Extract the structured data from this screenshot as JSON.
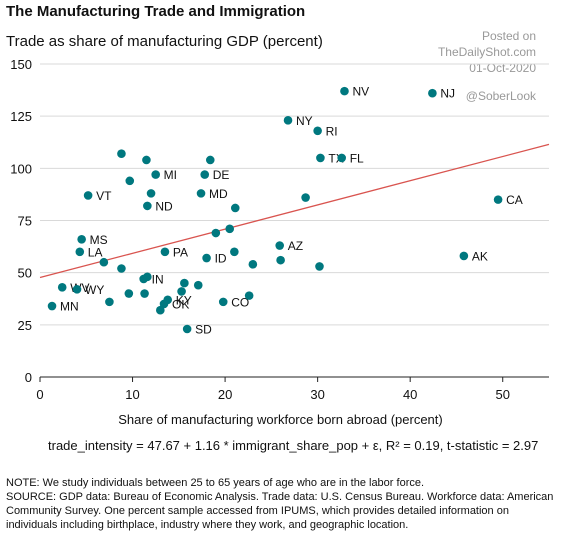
{
  "header": {
    "title": "The Manufacturing Trade and Immigration",
    "subtitle": "Trade as share of manufacturing GDP (percent)"
  },
  "watermark": {
    "posted_on": "Posted on",
    "site": "TheDailyShot.com",
    "date": "01-Oct-2020",
    "handle": "@SoberLook"
  },
  "equation": "trade_intensity = 47.67 + 1.16 * immigrant_share_pop + ε, R² = 0.19, t-statistic = 2.97",
  "notes": {
    "note": "NOTE: We study individuals between 25 to 65 years of age who are in the labor force.",
    "source": "SOURCE: GDP data: Bureau of Economic Analysis. Trade data: U.S. Census Bureau.  Workforce data: American Community Survey. One percent sample accessed from IPUMS, which provides detailed information on individuals including birthplace, industry where they work, and geographic location."
  },
  "colors": {
    "point": "#00787f",
    "trend": "#d9544f",
    "grid": "#d9d9d9"
  },
  "chart_data": {
    "type": "scatter",
    "xlabel": "Share of manufacturing workforce born abroad (percent)",
    "ylabel": "Trade as share of manufacturing GDP (percent)",
    "xlim": [
      0,
      55
    ],
    "ylim": [
      0,
      150
    ],
    "xticks": [
      0,
      10,
      20,
      30,
      40,
      50
    ],
    "yticks": [
      0,
      25,
      50,
      75,
      100,
      125,
      150
    ],
    "grid": "horizontal",
    "trendline": {
      "intercept": 47.67,
      "slope": 1.16
    },
    "points": [
      {
        "x": 32.9,
        "y": 137,
        "label": "NV"
      },
      {
        "x": 42.4,
        "y": 136,
        "label": "NJ"
      },
      {
        "x": 26.8,
        "y": 123,
        "label": "NY"
      },
      {
        "x": 30.0,
        "y": 118,
        "label": "RI"
      },
      {
        "x": 30.3,
        "y": 105,
        "label": "TX"
      },
      {
        "x": 32.6,
        "y": 105,
        "label": "FL"
      },
      {
        "x": 49.5,
        "y": 85,
        "label": "CA"
      },
      {
        "x": 12.5,
        "y": 97,
        "label": "MI"
      },
      {
        "x": 17.8,
        "y": 97,
        "label": "DE"
      },
      {
        "x": 17.4,
        "y": 88,
        "label": "MD"
      },
      {
        "x": 5.2,
        "y": 87,
        "label": "VT"
      },
      {
        "x": 11.6,
        "y": 82,
        "label": "ND"
      },
      {
        "x": 4.5,
        "y": 66,
        "label": "MS"
      },
      {
        "x": 4.3,
        "y": 60,
        "label": "LA"
      },
      {
        "x": 13.5,
        "y": 60,
        "label": "PA"
      },
      {
        "x": 25.9,
        "y": 63,
        "label": "AZ"
      },
      {
        "x": 45.8,
        "y": 58,
        "label": "AK"
      },
      {
        "x": 18.0,
        "y": 57,
        "label": "ID"
      },
      {
        "x": 11.2,
        "y": 47,
        "label": "IN"
      },
      {
        "x": 2.4,
        "y": 43,
        "label": "WV"
      },
      {
        "x": 4.0,
        "y": 42,
        "label": "WY"
      },
      {
        "x": 13.8,
        "y": 37,
        "label": "KY"
      },
      {
        "x": 13.4,
        "y": 35,
        "label": "OK"
      },
      {
        "x": 19.8,
        "y": 36,
        "label": "CO"
      },
      {
        "x": 1.3,
        "y": 34,
        "label": "MN"
      },
      {
        "x": 15.9,
        "y": 23,
        "label": "SD"
      },
      {
        "x": 8.8,
        "y": 107,
        "label": ""
      },
      {
        "x": 11.5,
        "y": 104,
        "label": ""
      },
      {
        "x": 18.4,
        "y": 104,
        "label": ""
      },
      {
        "x": 9.7,
        "y": 94,
        "label": ""
      },
      {
        "x": 12.0,
        "y": 88,
        "label": ""
      },
      {
        "x": 21.1,
        "y": 81,
        "label": ""
      },
      {
        "x": 28.7,
        "y": 86,
        "label": ""
      },
      {
        "x": 20.5,
        "y": 71,
        "label": ""
      },
      {
        "x": 19.0,
        "y": 69,
        "label": ""
      },
      {
        "x": 6.9,
        "y": 55,
        "label": ""
      },
      {
        "x": 8.8,
        "y": 52,
        "label": ""
      },
      {
        "x": 21.0,
        "y": 60,
        "label": ""
      },
      {
        "x": 23.0,
        "y": 54,
        "label": ""
      },
      {
        "x": 26.0,
        "y": 56,
        "label": ""
      },
      {
        "x": 30.2,
        "y": 53,
        "label": ""
      },
      {
        "x": 11.6,
        "y": 48,
        "label": ""
      },
      {
        "x": 15.6,
        "y": 45,
        "label": ""
      },
      {
        "x": 15.3,
        "y": 41,
        "label": ""
      },
      {
        "x": 17.1,
        "y": 44,
        "label": ""
      },
      {
        "x": 9.6,
        "y": 40,
        "label": ""
      },
      {
        "x": 11.3,
        "y": 40,
        "label": ""
      },
      {
        "x": 7.5,
        "y": 36,
        "label": ""
      },
      {
        "x": 22.6,
        "y": 39,
        "label": ""
      },
      {
        "x": 13.0,
        "y": 32,
        "label": ""
      }
    ]
  }
}
